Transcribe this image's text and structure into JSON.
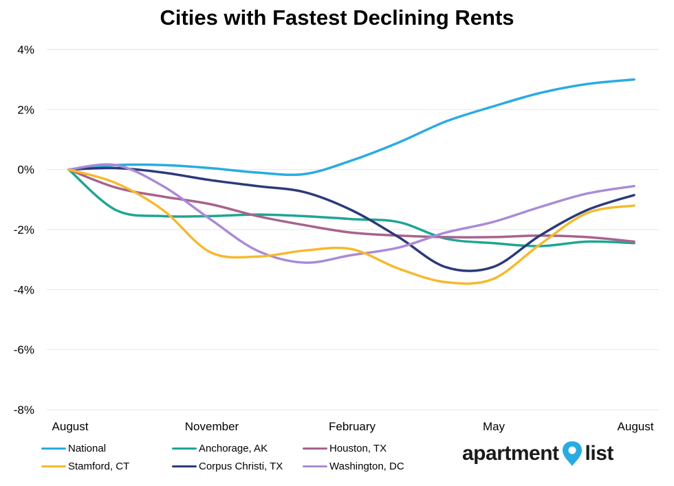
{
  "chart_data": {
    "type": "line",
    "title": "Cities with Fastest Declining Rents",
    "xlabel": "",
    "ylabel": "",
    "x_ticks": [
      "August",
      "November",
      "February",
      "May",
      "August"
    ],
    "ylim": [
      -8,
      4
    ],
    "y_ticks": [
      4,
      2,
      0,
      -2,
      -4,
      -6,
      -8
    ],
    "y_tick_labels": [
      "4%",
      "2%",
      "0%",
      "-2%",
      "-4%",
      "-6%",
      "-8%"
    ],
    "y_unit": "%",
    "grid": "horizontal",
    "legend_position": "bottom",
    "months": 12,
    "series": [
      {
        "name": "National",
        "color": "#29abe2",
        "values": [
          0,
          0.15,
          0.15,
          0.05,
          -0.1,
          -0.15,
          0.3,
          0.9,
          1.6,
          2.1,
          2.55,
          2.85,
          3.0
        ]
      },
      {
        "name": "Anchorage, AK",
        "color": "#1fa594",
        "values": [
          0,
          -1.35,
          -1.55,
          -1.55,
          -1.5,
          -1.55,
          -1.65,
          -1.75,
          -2.3,
          -2.45,
          -2.55,
          -2.4,
          -2.45
        ]
      },
      {
        "name": "Houston, TX",
        "color": "#a7648d",
        "values": [
          0,
          -0.6,
          -0.9,
          -1.15,
          -1.55,
          -1.85,
          -2.1,
          -2.2,
          -2.25,
          -2.25,
          -2.2,
          -2.25,
          -2.4
        ]
      },
      {
        "name": "Stamford, CT",
        "color": "#f6b92d",
        "values": [
          0,
          -0.45,
          -1.35,
          -2.75,
          -2.9,
          -2.7,
          -2.65,
          -3.3,
          -3.75,
          -3.65,
          -2.5,
          -1.45,
          -1.2
        ]
      },
      {
        "name": "Corpus Christi, TX",
        "color": "#2c3a7a",
        "values": [
          0,
          0.05,
          -0.1,
          -0.35,
          -0.55,
          -0.75,
          -1.35,
          -2.25,
          -3.25,
          -3.25,
          -2.2,
          -1.35,
          -0.85
        ]
      },
      {
        "name": "Washington, DC",
        "color": "#a98bd6",
        "values": [
          0,
          0.15,
          -0.55,
          -1.65,
          -2.7,
          -3.1,
          -2.85,
          -2.6,
          -2.1,
          -1.75,
          -1.25,
          -0.8,
          -0.55
        ]
      }
    ]
  },
  "brand": {
    "text_before": "apartment",
    "text_after": "list",
    "color": "#1a1a1a",
    "icon_color": "#29abe2"
  }
}
